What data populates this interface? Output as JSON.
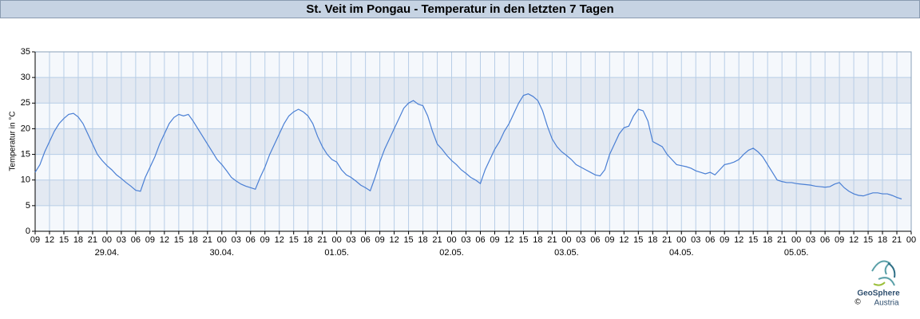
{
  "chart_data": {
    "type": "line",
    "title": "St. Veit im Pongau - Temperatur in den letzten 7 Tagen",
    "y_label": "Temperatur in °C",
    "color": "#4a7fd4",
    "grid": true,
    "xlim": [
      0,
      183
    ],
    "ylim": [
      0,
      35
    ],
    "yticks": [
      0,
      5,
      10,
      15,
      20,
      25,
      30,
      35
    ],
    "xticks": [
      {
        "value": 0,
        "label": "09"
      },
      {
        "value": 3,
        "label": "12"
      },
      {
        "value": 6,
        "label": "15"
      },
      {
        "value": 9,
        "label": "18"
      },
      {
        "value": 12,
        "label": "21"
      },
      {
        "value": 15,
        "label": "00"
      },
      {
        "value": 18,
        "label": "03"
      },
      {
        "value": 21,
        "label": "06"
      },
      {
        "value": 24,
        "label": "09"
      },
      {
        "value": 27,
        "label": "12"
      },
      {
        "value": 30,
        "label": "15"
      },
      {
        "value": 33,
        "label": "18"
      },
      {
        "value": 36,
        "label": "21"
      },
      {
        "value": 39,
        "label": "00"
      },
      {
        "value": 42,
        "label": "03"
      },
      {
        "value": 45,
        "label": "06"
      },
      {
        "value": 48,
        "label": "09"
      },
      {
        "value": 51,
        "label": "12"
      },
      {
        "value": 54,
        "label": "15"
      },
      {
        "value": 57,
        "label": "18"
      },
      {
        "value": 60,
        "label": "21"
      },
      {
        "value": 63,
        "label": "00"
      },
      {
        "value": 66,
        "label": "03"
      },
      {
        "value": 69,
        "label": "06"
      },
      {
        "value": 72,
        "label": "09"
      },
      {
        "value": 75,
        "label": "12"
      },
      {
        "value": 78,
        "label": "15"
      },
      {
        "value": 81,
        "label": "18"
      },
      {
        "value": 84,
        "label": "21"
      },
      {
        "value": 87,
        "label": "00"
      },
      {
        "value": 90,
        "label": "03"
      },
      {
        "value": 93,
        "label": "06"
      },
      {
        "value": 96,
        "label": "09"
      },
      {
        "value": 99,
        "label": "12"
      },
      {
        "value": 102,
        "label": "15"
      },
      {
        "value": 105,
        "label": "18"
      },
      {
        "value": 108,
        "label": "21"
      },
      {
        "value": 111,
        "label": "00"
      },
      {
        "value": 114,
        "label": "03"
      },
      {
        "value": 117,
        "label": "06"
      },
      {
        "value": 120,
        "label": "09"
      },
      {
        "value": 123,
        "label": "12"
      },
      {
        "value": 126,
        "label": "15"
      },
      {
        "value": 129,
        "label": "18"
      },
      {
        "value": 132,
        "label": "21"
      },
      {
        "value": 135,
        "label": "00"
      },
      {
        "value": 138,
        "label": "03"
      },
      {
        "value": 141,
        "label": "06"
      },
      {
        "value": 144,
        "label": "09"
      },
      {
        "value": 147,
        "label": "12"
      },
      {
        "value": 150,
        "label": "15"
      },
      {
        "value": 153,
        "label": "18"
      },
      {
        "value": 156,
        "label": "21"
      },
      {
        "value": 159,
        "label": "00"
      },
      {
        "value": 162,
        "label": "03"
      },
      {
        "value": 165,
        "label": "06"
      },
      {
        "value": 168,
        "label": "09"
      },
      {
        "value": 171,
        "label": "12"
      },
      {
        "value": 174,
        "label": "15"
      },
      {
        "value": 177,
        "label": "18"
      },
      {
        "value": 180,
        "label": "21"
      },
      {
        "value": 183,
        "label": "00"
      }
    ],
    "date_labels": [
      {
        "value": 15,
        "label": "29.04."
      },
      {
        "value": 39,
        "label": "30.04."
      },
      {
        "value": 63,
        "label": "01.05."
      },
      {
        "value": 87,
        "label": "02.05."
      },
      {
        "value": 111,
        "label": "03.05."
      },
      {
        "value": 135,
        "label": "04.05."
      },
      {
        "value": 159,
        "label": "05.05."
      }
    ],
    "x": [
      0,
      1,
      2,
      3,
      4,
      5,
      6,
      7,
      8,
      9,
      10,
      11,
      12,
      13,
      14,
      15,
      16,
      17,
      18,
      19,
      20,
      21,
      22,
      23,
      24,
      25,
      26,
      27,
      28,
      29,
      30,
      31,
      32,
      33,
      34,
      35,
      36,
      37,
      38,
      39,
      40,
      41,
      42,
      43,
      44,
      45,
      46,
      47,
      48,
      49,
      50,
      51,
      52,
      53,
      54,
      55,
      56,
      57,
      58,
      59,
      60,
      61,
      62,
      63,
      64,
      65,
      66,
      67,
      68,
      69,
      70,
      71,
      72,
      73,
      74,
      75,
      76,
      77,
      78,
      79,
      80,
      81,
      82,
      83,
      84,
      85,
      86,
      87,
      88,
      89,
      90,
      91,
      92,
      93,
      94,
      95,
      96,
      97,
      98,
      99,
      100,
      101,
      102,
      103,
      104,
      105,
      106,
      107,
      108,
      109,
      110,
      111,
      112,
      113,
      114,
      115,
      116,
      117,
      118,
      119,
      120,
      121,
      122,
      123,
      124,
      125,
      126,
      127,
      128,
      129,
      130,
      131,
      132,
      133,
      134,
      135,
      136,
      137,
      138,
      139,
      140,
      141,
      142,
      143,
      144,
      145,
      146,
      147,
      148,
      149,
      150,
      151,
      152,
      153,
      154,
      155,
      156,
      157,
      158,
      159,
      160,
      161,
      162,
      163,
      164,
      165,
      166,
      167,
      168,
      169,
      170,
      171,
      172,
      173,
      174,
      175,
      176,
      177,
      178,
      179,
      180,
      181
    ],
    "values": [
      11.5,
      13,
      15.5,
      17.5,
      19.5,
      21,
      22,
      22.8,
      23,
      22.3,
      21,
      19,
      17,
      15,
      13.8,
      12.8,
      12,
      11,
      10.3,
      9.5,
      8.8,
      8,
      7.8,
      10.5,
      12.5,
      14.5,
      17,
      19,
      21,
      22.2,
      22.8,
      22.5,
      22.8,
      21.5,
      20,
      18.5,
      17,
      15.5,
      14,
      13,
      11.8,
      10.5,
      9.8,
      9.2,
      8.8,
      8.5,
      8.2,
      10.5,
      12.5,
      15,
      17,
      19,
      21,
      22.5,
      23.3,
      23.8,
      23.3,
      22.5,
      21,
      18.5,
      16.5,
      15,
      14,
      13.5,
      12,
      11,
      10.5,
      9.8,
      9,
      8.5,
      7.9,
      10.5,
      13.5,
      16,
      18,
      20,
      22,
      24,
      25,
      25.5,
      24.8,
      24.5,
      22.5,
      19.5,
      17,
      16,
      14.8,
      13.8,
      13,
      12,
      11.3,
      10.5,
      10,
      9.3,
      12,
      14,
      16,
      17.5,
      19.5,
      21,
      23,
      25,
      26.5,
      26.8,
      26.3,
      25.5,
      23.5,
      20.5,
      18,
      16.5,
      15.5,
      14.8,
      14,
      13,
      12.5,
      12,
      11.5,
      11,
      10.8,
      12,
      15,
      17,
      19,
      20.2,
      20.5,
      22.5,
      23.8,
      23.5,
      21.5,
      17.5,
      17,
      16.5,
      15,
      14,
      13,
      12.8,
      12.6,
      12.3,
      11.8,
      11.5,
      11.2,
      11.5,
      11,
      12,
      13,
      13.2,
      13.5,
      14,
      15,
      15.8,
      16.2,
      15.5,
      14.5,
      13,
      11.5,
      10,
      9.7,
      9.5,
      9.5,
      9.3,
      9.2,
      9.1,
      9,
      8.8,
      8.7,
      8.6,
      8.7,
      9.2,
      9.5,
      8.5,
      7.8,
      7.3,
      7,
      6.9,
      7.2,
      7.5,
      7.5,
      7.3,
      7.3,
      7,
      6.6,
      6.3
    ]
  },
  "logo": {
    "name": "GeoSphere",
    "sub": "Austria",
    "copyright": "©"
  }
}
